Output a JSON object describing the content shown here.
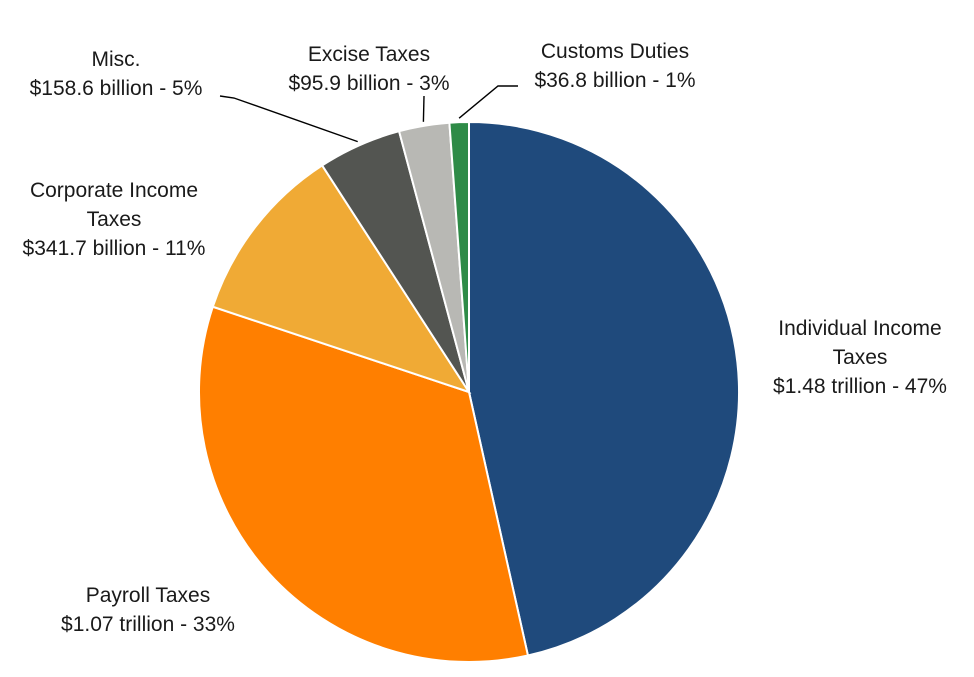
{
  "chart_data": {
    "type": "pie",
    "start_angle_deg": 0,
    "direction": "clockwise",
    "slices": [
      {
        "name_lines": [
          "Individual Income",
          "Taxes"
        ],
        "value_text": "$1.48 trillion - 47%",
        "value": 1480,
        "percent": 47,
        "color": "#1F4A7C"
      },
      {
        "name_lines": [
          "Payroll Taxes"
        ],
        "value_text": "$1.07 trillion - 33%",
        "value": 1070,
        "percent": 33,
        "color": "#FF7F00"
      },
      {
        "name_lines": [
          "Corporate Income",
          "Taxes"
        ],
        "value_text": "$341.7 billion - 11%",
        "value": 341.7,
        "percent": 11,
        "color": "#F0AA35"
      },
      {
        "name_lines": [
          "Misc."
        ],
        "value_text": "$158.6 billion - 5%",
        "value": 158.6,
        "percent": 5,
        "color": "#535551"
      },
      {
        "name_lines": [
          "Excise Taxes"
        ],
        "value_text": "$95.9 billion - 3%",
        "value": 95.9,
        "percent": 3,
        "color": "#B8B8B4"
      },
      {
        "name_lines": [
          "Customs Duties"
        ],
        "value_text": "$36.8 billion - 1%",
        "value": 36.8,
        "percent": 1,
        "color": "#2E8B47"
      }
    ]
  }
}
